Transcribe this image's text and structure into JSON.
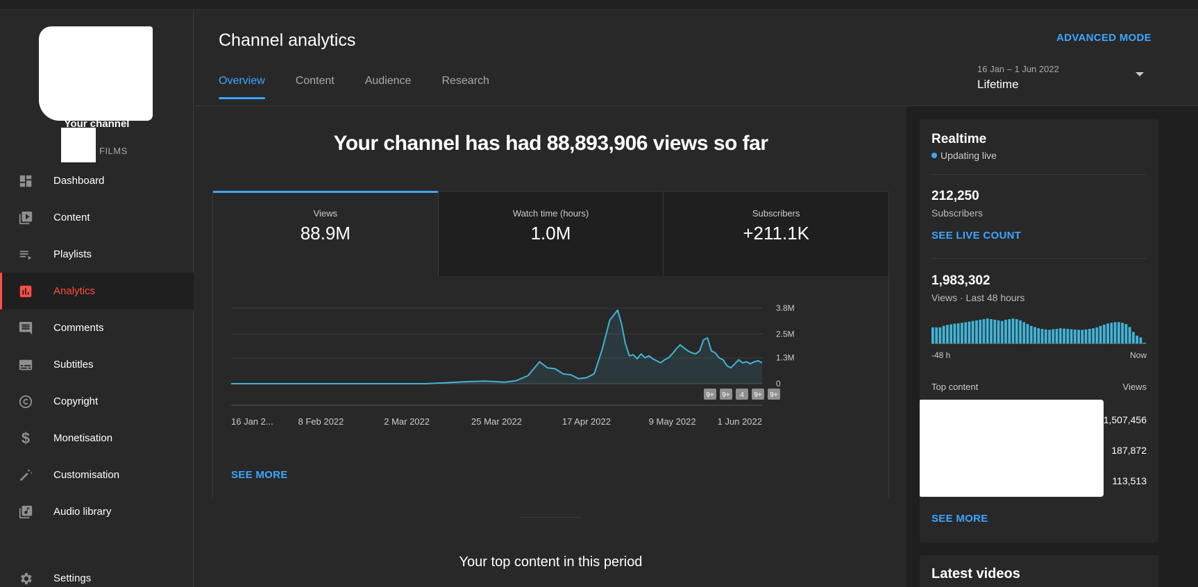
{
  "sidebar": {
    "channel_label": "Your channel",
    "channel_sub": "FILMS",
    "items": [
      {
        "label": "Dashboard",
        "icon": "dashboard-icon"
      },
      {
        "label": "Content",
        "icon": "content-icon"
      },
      {
        "label": "Playlists",
        "icon": "playlists-icon"
      },
      {
        "label": "Analytics",
        "icon": "analytics-icon",
        "active": true
      },
      {
        "label": "Comments",
        "icon": "comments-icon"
      },
      {
        "label": "Subtitles",
        "icon": "subtitles-icon"
      },
      {
        "label": "Copyright",
        "icon": "copyright-icon"
      },
      {
        "label": "Monetisation",
        "icon": "dollar-icon"
      },
      {
        "label": "Customisation",
        "icon": "magic-wand-icon"
      },
      {
        "label": "Audio library",
        "icon": "audio-library-icon"
      }
    ],
    "settings_label": "Settings"
  },
  "header": {
    "title": "Channel analytics",
    "advanced_mode": "ADVANCED MODE",
    "tabs": [
      {
        "label": "Overview",
        "active": true
      },
      {
        "label": "Content"
      },
      {
        "label": "Audience"
      },
      {
        "label": "Research"
      }
    ],
    "date_range": "16 Jan – 1 Jun 2022",
    "date_value": "Lifetime"
  },
  "main": {
    "headline": "Your channel has had 88,893,906 views so far",
    "metrics": [
      {
        "label": "Views",
        "value": "88.9M",
        "active": true
      },
      {
        "label": "Watch time (hours)",
        "value": "1.0M"
      },
      {
        "label": "Subscribers",
        "value": "+211.1K"
      }
    ],
    "see_more": "SEE MORE",
    "top_content_title": "Your top content in this period"
  },
  "chart_data": {
    "type": "area",
    "ylim": [
      0,
      3800000
    ],
    "y_ticks": [
      "0",
      "1.3M",
      "2.5M",
      "3.8M"
    ],
    "y_tick_values": [
      0,
      1300000,
      2500000,
      3800000
    ],
    "x_ticks": [
      "16 Jan 2...",
      "8 Feb 2022",
      "2 Mar 2022",
      "25 Mar 2022",
      "17 Apr 2022",
      "9 May 2022",
      "1 Jun 2022"
    ],
    "x_tick_days": [
      0,
      23,
      45,
      68,
      91,
      113,
      136
    ],
    "x_days": [
      0,
      10,
      20,
      30,
      40,
      50,
      55,
      60,
      65,
      70,
      73,
      76,
      79,
      81,
      83,
      85,
      87,
      89,
      91,
      93,
      95,
      97,
      99,
      100,
      101,
      102,
      103,
      104,
      105,
      106,
      107,
      108,
      109,
      110,
      111,
      112,
      113,
      114,
      115,
      116,
      117,
      118,
      119,
      120,
      121,
      122,
      123,
      124,
      125,
      126,
      127,
      128,
      129,
      130,
      131,
      132,
      133,
      134,
      135,
      136
    ],
    "values": [
      0,
      0,
      0,
      0,
      0,
      0,
      50000,
      100000,
      130000,
      80000,
      150000,
      400000,
      1100000,
      800000,
      750000,
      500000,
      450000,
      250000,
      300000,
      500000,
      1700000,
      3200000,
      3700000,
      3000000,
      2000000,
      1400000,
      1450000,
      1250000,
      1500000,
      1300000,
      1400000,
      1250000,
      1150000,
      1050000,
      1200000,
      1300000,
      1500000,
      1750000,
      1950000,
      1800000,
      1650000,
      1550000,
      1500000,
      1650000,
      2200000,
      2300000,
      1650000,
      1550000,
      1300000,
      1200000,
      900000,
      800000,
      1000000,
      1200000,
      1050000,
      1100000,
      1000000,
      1100000,
      1150000,
      1050000
    ],
    "event_badges": [
      "9+",
      "9+",
      "4",
      "9+",
      "9+"
    ]
  },
  "realtime": {
    "title": "Realtime",
    "live_label": "Updating live",
    "subscribers": "212,250",
    "subscribers_label": "Subscribers",
    "see_live_count": "SEE LIVE COUNT",
    "views_48h": "1,983,302",
    "views_48h_label": "Views · Last 48 hours",
    "axis_left": "-48 h",
    "axis_right": "Now",
    "top_content_label": "Top content",
    "views_label": "Views",
    "top_values": [
      "1,507,456",
      "187,872",
      "113,513"
    ],
    "see_more": "SEE MORE",
    "bar_values": [
      0.55,
      0.55,
      0.55,
      0.6,
      0.63,
      0.65,
      0.67,
      0.68,
      0.7,
      0.72,
      0.74,
      0.76,
      0.78,
      0.8,
      0.82,
      0.84,
      0.82,
      0.8,
      0.78,
      0.76,
      0.8,
      0.82,
      0.84,
      0.82,
      0.78,
      0.72,
      0.66,
      0.6,
      0.56,
      0.52,
      0.5,
      0.48,
      0.47,
      0.49,
      0.5,
      0.52,
      0.51,
      0.5,
      0.49,
      0.48,
      0.47,
      0.47,
      0.48,
      0.5,
      0.52,
      0.55,
      0.6,
      0.64,
      0.68,
      0.7,
      0.72,
      0.72,
      0.7,
      0.66,
      0.56,
      0.4,
      0.28,
      0.22,
      0.05
    ]
  },
  "latest_videos_title": "Latest videos",
  "colors": {
    "accent": "#3ea6ff",
    "active_nav": "#ff4e45",
    "chart_line": "#41b4d8"
  }
}
